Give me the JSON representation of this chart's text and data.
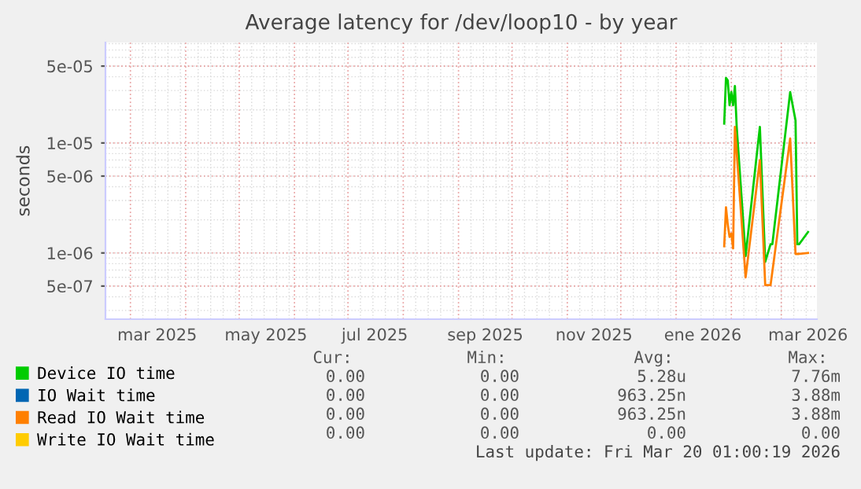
{
  "chart_data": {
    "type": "line",
    "title": "Average latency for /dev/loop10 - by year",
    "ylabel": "seconds",
    "log": "y",
    "ylim": [
      2.5e-07,
      8.2e-05
    ],
    "yticks": [
      5e-07,
      1e-06,
      5e-06,
      1e-05,
      5e-05
    ],
    "xlim": [
      "2025-02-15",
      "2026-03-21"
    ],
    "xticks": [
      {
        "value": "2025-03-16",
        "label": "mar 2025"
      },
      {
        "value": "2025-05-16",
        "label": "may 2025"
      },
      {
        "value": "2025-07-16",
        "label": "jul 2025"
      },
      {
        "value": "2025-09-16",
        "label": "sep 2025"
      },
      {
        "value": "2025-11-16",
        "label": "nov 2025"
      },
      {
        "value": "2026-01-16",
        "label": "ene 2026"
      },
      {
        "value": "2026-03-16",
        "label": "mar 2026"
      }
    ],
    "grid": true,
    "legend": "bottom",
    "marker": "none",
    "line_style": "solid",
    "series": [
      {
        "name": "Device IO time",
        "color": "#00cc00",
        "x": [
          "2026-01-28",
          "2026-01-29",
          "2026-01-30",
          "2026-01-31",
          "2026-02-01",
          "2026-02-02",
          "2026-02-03",
          "2026-02-04",
          "2026-02-09",
          "2026-02-17",
          "2026-02-20",
          "2026-02-23",
          "2026-02-24",
          "2026-03-06",
          "2026-03-09",
          "2026-03-10",
          "2026-03-11",
          "2026-03-16"
        ],
        "values": [
          1.5e-05,
          3.9e-05,
          3.7e-05,
          2.2e-05,
          2.9e-05,
          2.2e-05,
          3.3e-05,
          1.4e-05,
          9.4e-07,
          1.4e-05,
          8.3e-07,
          1.2e-06,
          1.2e-06,
          2.9e-05,
          1.6e-05,
          1.2e-06,
          1.2e-06,
          1.55e-06
        ]
      },
      {
        "name": "IO Wait time",
        "color": "#0066b3"
      },
      {
        "name": "Read IO Wait time",
        "color": "#ff8000",
        "x": [
          "2026-01-28",
          "2026-01-29",
          "2026-01-30",
          "2026-01-31",
          "2026-02-01",
          "2026-02-02",
          "2026-02-03",
          "2026-02-09",
          "2026-02-17",
          "2026-02-20",
          "2026-02-23",
          "2026-03-06",
          "2026-03-09",
          "2026-03-10",
          "2026-03-11",
          "2026-03-16"
        ],
        "values": [
          1.15e-06,
          2.6e-06,
          1.8e-06,
          1.4e-06,
          1.5e-06,
          1.1e-06,
          1.4e-05,
          6e-07,
          7e-06,
          5.1e-07,
          5.1e-07,
          1.1e-05,
          9.8e-07,
          9.8e-07,
          9.8e-07,
          1e-06
        ]
      },
      {
        "name": "Write IO Wait time",
        "color": "#ffcc00"
      }
    ],
    "annotations": [
      "Cur:",
      "Min:",
      "Avg:",
      "Max:",
      "0.00",
      "0.00",
      "5.28u",
      "7.76m",
      "0.00",
      "0.00",
      "963.25n",
      "3.88m",
      "0.00",
      "0.00",
      "963.25n",
      "3.88m",
      "0.00",
      "0.00",
      "0.00",
      "0.00",
      "Last update: Fri Mar 20 01:00:19 2026"
    ]
  }
}
